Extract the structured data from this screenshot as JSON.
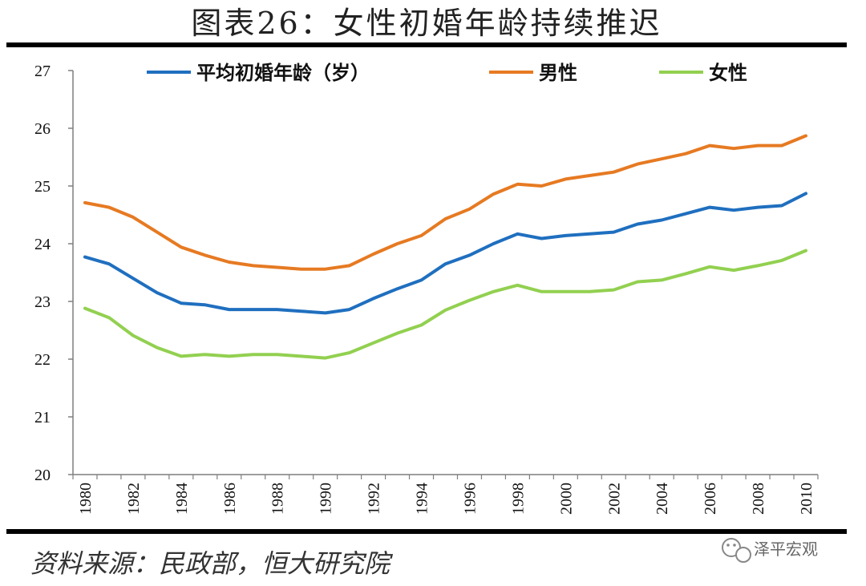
{
  "title": "图表26：女性初婚年龄持续推迟",
  "source": "资料来源：民政部，恒大研究院",
  "watermark": "泽平宏观",
  "chart_data": {
    "type": "line",
    "title": "图表26：女性初婚年龄持续推迟",
    "xlabel": "",
    "ylabel": "",
    "ylim": [
      20,
      27
    ],
    "yticks": [
      "20",
      "21",
      "22",
      "23",
      "24",
      "25",
      "26",
      "27"
    ],
    "x": [
      1980,
      1981,
      1982,
      1983,
      1984,
      1985,
      1986,
      1987,
      1988,
      1989,
      1990,
      1991,
      1992,
      1993,
      1994,
      1995,
      1996,
      1997,
      1998,
      1999,
      2000,
      2001,
      2002,
      2003,
      2004,
      2005,
      2006,
      2007,
      2008,
      2009,
      2010
    ],
    "xticks": [
      "1980",
      "1982",
      "1984",
      "1986",
      "1988",
      "1990",
      "1992",
      "1994",
      "1996",
      "1998",
      "2000",
      "2002",
      "2004",
      "2006",
      "2008",
      "2010"
    ],
    "grid": false,
    "legend_position": "top",
    "series": [
      {
        "name": "平均初婚年龄（岁）",
        "color": "#1f6fbf",
        "values": [
          23.77,
          23.65,
          23.4,
          23.15,
          22.97,
          22.94,
          22.86,
          22.86,
          22.86,
          22.83,
          22.8,
          22.86,
          23.05,
          23.22,
          23.37,
          23.65,
          23.8,
          24.0,
          24.17,
          24.09,
          24.14,
          24.17,
          24.2,
          24.34,
          24.41,
          24.52,
          24.63,
          24.58,
          24.63,
          24.66,
          24.87
        ]
      },
      {
        "name": "男性",
        "color": "#e67a22",
        "values": [
          24.71,
          24.63,
          24.46,
          24.2,
          23.94,
          23.8,
          23.68,
          23.62,
          23.59,
          23.56,
          23.56,
          23.62,
          23.82,
          24.0,
          24.14,
          24.43,
          24.6,
          24.86,
          25.03,
          25.0,
          25.12,
          25.18,
          25.24,
          25.38,
          25.47,
          25.56,
          25.7,
          25.65,
          25.7,
          25.7,
          25.87
        ]
      },
      {
        "name": "女性",
        "color": "#92d050",
        "values": [
          22.88,
          22.72,
          22.41,
          22.2,
          22.05,
          22.08,
          22.05,
          22.08,
          22.08,
          22.05,
          22.02,
          22.11,
          22.28,
          22.45,
          22.59,
          22.85,
          23.02,
          23.17,
          23.28,
          23.17,
          23.17,
          23.17,
          23.2,
          23.34,
          23.37,
          23.48,
          23.6,
          23.54,
          23.62,
          23.71,
          23.88
        ]
      }
    ]
  }
}
